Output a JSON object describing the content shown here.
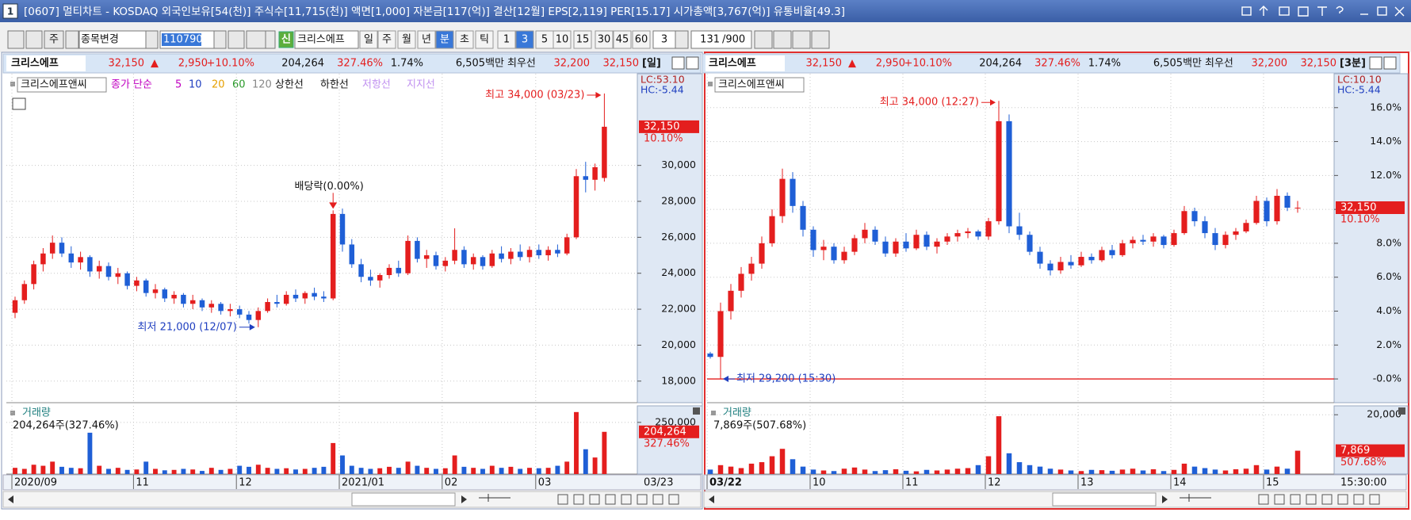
{
  "window": {
    "number": "1",
    "title": "[0607] 멀티차트 - KOSDAQ 외국인보유[54(천)] 주식수[11,715(천)] 액면[1,000] 자본금[117(억)] 결산[12월] EPS[2,119] PER[15.17] 시가총액[3,767(억)] 유통비율[49.3]"
  },
  "toolbar": {
    "period_select": "주",
    "stock_change": "종목변경",
    "code": "110790",
    "new_badge": "신",
    "stock_name": "크리스에프",
    "periods": [
      "일",
      "주",
      "월",
      "년",
      "분",
      "초",
      "틱"
    ],
    "minutes": [
      "1",
      "3",
      "5",
      "10",
      "15",
      "30",
      "45",
      "60"
    ],
    "interval": "3",
    "count": "131",
    "max_count": "/900"
  },
  "panels": [
    {
      "name": "크리스에프",
      "price": "32,150",
      "arrow": "▲",
      "change": "2,950",
      "change_rate": "+10.10%",
      "volume": "204,264",
      "volume_rate": "327.46%",
      "turnover": "1.74%",
      "amount": "6,505백만",
      "best_label": "최우선",
      "ask": "32,200",
      "bid": "32,150",
      "period": "[일]",
      "legend_name": "크리스에프앤씨",
      "indicator": "종가 단순",
      "ma_periods": [
        "5",
        "10",
        "20",
        "60",
        "120"
      ],
      "bands": [
        "상한선",
        "하한선"
      ],
      "lines": [
        "저항선",
        "지지선"
      ]
    },
    {
      "name": "크리스에프",
      "price": "32,150",
      "arrow": "▲",
      "change": "2,950",
      "change_rate": "+10.10%",
      "volume": "204,264",
      "volume_rate": "327.46%",
      "turnover": "1.74%",
      "amount": "6,505백만",
      "best_label": "최우선",
      "ask": "32,200",
      "bid": "32,150",
      "period": "[3분]",
      "legend_name": "크리스에프앤씨"
    }
  ],
  "chart_data": [
    {
      "type": "candlestick",
      "up_color": "#e41e1e",
      "down_color": "#1f5fd6",
      "grid": true,
      "ylim": [
        16800,
        35100
      ],
      "yticks": [
        {
          "value": 18000,
          "label": "18,000"
        },
        {
          "value": 20000,
          "label": "20,000"
        },
        {
          "value": 22000,
          "label": "22,000"
        },
        {
          "value": 24000,
          "label": "24,000"
        },
        {
          "value": 26000,
          "label": "26,000"
        },
        {
          "value": 28000,
          "label": "28,000"
        },
        {
          "value": 30000,
          "label": "30,000"
        }
      ],
      "open": [
        21800,
        22500,
        23400,
        24500,
        25100,
        25700,
        25100,
        24600,
        24900,
        24100,
        24400,
        23800,
        24000,
        23300,
        23600,
        22900,
        23100,
        22600,
        22800,
        22300,
        22500,
        22100,
        22300,
        21900,
        22000,
        21700,
        21400,
        21900,
        22400,
        22300,
        22800,
        22600,
        22900,
        22700,
        22600,
        27300,
        25600,
        24500,
        23800,
        23600,
        23900,
        24300,
        24000,
        25800,
        24800,
        25000,
        24400,
        24700,
        25300,
        24500,
        24900,
        24400,
        25100,
        24800,
        25200,
        24900,
        25300,
        25000,
        25300,
        25100,
        26000,
        29400,
        29200,
        29300
      ],
      "high": [
        22700,
        23600,
        24700,
        25400,
        26100,
        26000,
        25500,
        25200,
        25000,
        24700,
        24600,
        24300,
        24100,
        23800,
        23700,
        23400,
        23200,
        23000,
        22900,
        22800,
        22600,
        22500,
        22400,
        22300,
        22200,
        21900,
        22100,
        22600,
        22800,
        23000,
        23100,
        23000,
        23200,
        23000,
        27500,
        27600,
        25900,
        24800,
        24200,
        24000,
        24500,
        24700,
        26100,
        26000,
        25300,
        25200,
        24900,
        26500,
        25500,
        25100,
        25000,
        25300,
        25500,
        25400,
        25600,
        25500,
        25600,
        25500,
        25600,
        26200,
        29800,
        30200,
        30100,
        34000
      ],
      "low": [
        21500,
        22300,
        23100,
        24100,
        24800,
        24900,
        24300,
        24200,
        23800,
        23700,
        23600,
        23400,
        23100,
        23000,
        22700,
        22600,
        22400,
        22300,
        22100,
        22000,
        21900,
        21800,
        21700,
        21600,
        21500,
        21200,
        21000,
        21800,
        22100,
        22200,
        22400,
        22300,
        22500,
        22400,
        22500,
        25200,
        24300,
        23500,
        23300,
        23200,
        23700,
        23800,
        23900,
        24600,
        24300,
        24200,
        24100,
        24500,
        24300,
        24200,
        24200,
        24300,
        24600,
        24500,
        24700,
        24600,
        24800,
        24700,
        24900,
        25000,
        25900,
        28500,
        28600,
        29100
      ],
      "close": [
        22500,
        23400,
        24500,
        25100,
        25700,
        25100,
        24600,
        24900,
        24100,
        24400,
        23800,
        24000,
        23300,
        23600,
        22900,
        23100,
        22600,
        22800,
        22300,
        22500,
        22100,
        22300,
        21900,
        22000,
        21700,
        21400,
        21900,
        22400,
        22300,
        22800,
        22600,
        22900,
        22700,
        22600,
        27300,
        25600,
        24500,
        23800,
        23600,
        23900,
        24300,
        24000,
        25800,
        24800,
        25000,
        24400,
        24700,
        25300,
        24500,
        24900,
        24400,
        25100,
        24800,
        25200,
        24900,
        25300,
        25000,
        25300,
        25100,
        26000,
        29400,
        29200,
        29900,
        32150
      ],
      "high_label": "최고 34,000 (03/23)",
      "low_label": "최저 21,000 (12/07)",
      "event_label": "배당락(0.00%)",
      "lc_label": "LC:53.10",
      "hc_label": "HC:-5.44",
      "last_price_label": "32,150",
      "last_change_label": "10.10%"
    },
    {
      "type": "bar",
      "title": "거래량",
      "summary": "204,264주(327.46%)",
      "color_up": "#e41e1e",
      "color_down": "#1f5fd6",
      "grid": true,
      "categories": [
        "2020/09",
        null,
        null,
        null,
        null,
        null,
        null,
        null,
        null,
        null,
        null,
        null,
        null,
        "11",
        null,
        null,
        null,
        null,
        null,
        null,
        null,
        null,
        null,
        null,
        "12",
        null,
        null,
        null,
        null,
        null,
        null,
        null,
        null,
        null,
        null,
        "2021/01",
        null,
        null,
        null,
        null,
        null,
        null,
        null,
        null,
        null,
        null,
        "02",
        null,
        null,
        null,
        null,
        null,
        null,
        null,
        null,
        null,
        "03",
        null,
        null,
        null,
        null,
        null,
        null,
        null
      ],
      "values": [
        30000,
        25000,
        45000,
        40000,
        60000,
        35000,
        30000,
        28000,
        200000,
        40000,
        25000,
        30000,
        20000,
        22000,
        60000,
        25000,
        18000,
        20000,
        25000,
        22000,
        15000,
        30000,
        20000,
        25000,
        40000,
        35000,
        45000,
        30000,
        25000,
        28000,
        22000,
        25000,
        30000,
        35000,
        150000,
        90000,
        40000,
        30000,
        25000,
        28000,
        35000,
        30000,
        60000,
        40000,
        30000,
        25000,
        28000,
        90000,
        35000,
        30000,
        25000,
        40000,
        30000,
        35000,
        25000,
        30000,
        28000,
        30000,
        40000,
        60000,
        300000,
        120000,
        80000,
        204264
      ],
      "ylim": [
        0,
        330000
      ],
      "yticks": [
        {
          "value": 250000,
          "label": "250,000"
        }
      ],
      "last_value_label": "204,264",
      "last_rate_label": "327.46%",
      "current_date": "03/23"
    },
    {
      "type": "candlestick",
      "up_color": "#e41e1e",
      "down_color": "#1f5fd6",
      "grid": true,
      "ylim": [
        -1.4,
        18
      ],
      "yticks": [
        {
          "value": 0,
          "label": "-0.0%"
        },
        {
          "value": 2,
          "label": "2.0%"
        },
        {
          "value": 4,
          "label": "4.0%"
        },
        {
          "value": 6,
          "label": "6.0%"
        },
        {
          "value": 8,
          "label": "8.0%"
        },
        {
          "value": 10,
          "label": "10.0%"
        },
        {
          "value": 12,
          "label": "12.0%"
        },
        {
          "value": 14,
          "label": "14.0%"
        },
        {
          "value": 16,
          "label": "16.0%"
        }
      ],
      "reference_line": 0,
      "open": [
        1.5,
        1.3,
        4.0,
        5.2,
        6.2,
        6.8,
        8.0,
        9.6,
        11.8,
        10.2,
        8.8,
        7.6,
        7.8,
        7.0,
        7.5,
        8.3,
        8.8,
        8.1,
        7.4,
        8.1,
        7.7,
        8.5,
        7.8,
        8.1,
        8.4,
        8.6,
        8.7,
        8.4,
        9.3,
        15.2,
        9.0,
        8.5,
        7.5,
        6.8,
        6.4,
        6.9,
        6.7,
        7.2,
        7.0,
        7.6,
        7.3,
        8.0,
        8.2,
        8.1,
        8.4,
        7.9,
        8.6,
        9.9,
        9.3,
        8.6,
        7.9,
        8.5,
        8.7,
        9.2,
        10.5,
        9.3,
        10.8,
        10.1
      ],
      "high": [
        1.6,
        4.5,
        5.6,
        6.6,
        7.2,
        8.4,
        10.0,
        12.4,
        12.2,
        10.5,
        9.0,
        8.2,
        8.0,
        7.8,
        8.5,
        9.2,
        9.0,
        8.4,
        8.3,
        8.6,
        8.8,
        8.7,
        8.3,
        8.6,
        8.8,
        8.9,
        8.8,
        9.5,
        16.4,
        15.6,
        9.8,
        8.7,
        7.8,
        7.0,
        7.2,
        7.3,
        7.5,
        7.4,
        7.8,
        7.9,
        8.2,
        8.4,
        8.5,
        8.6,
        8.5,
        8.8,
        10.2,
        10.1,
        9.6,
        8.9,
        8.7,
        8.9,
        9.4,
        10.8,
        10.7,
        11.2,
        11.0,
        10.5
      ],
      "low": [
        1.2,
        0.0,
        3.5,
        4.8,
        5.8,
        6.5,
        7.8,
        9.2,
        9.8,
        8.4,
        7.2,
        7.0,
        6.8,
        6.8,
        7.3,
        8.0,
        7.9,
        7.2,
        7.2,
        7.5,
        7.6,
        7.6,
        7.4,
        7.9,
        8.1,
        8.3,
        8.2,
        8.2,
        9.1,
        8.6,
        8.2,
        7.3,
        6.5,
        6.1,
        6.2,
        6.5,
        6.6,
        6.8,
        6.9,
        7.1,
        7.2,
        7.7,
        7.9,
        7.8,
        7.7,
        7.8,
        8.5,
        9.0,
        8.3,
        7.6,
        7.7,
        8.2,
        8.6,
        9.1,
        9.0,
        9.1,
        9.9,
        9.8
      ],
      "close": [
        1.3,
        4.0,
        5.2,
        6.2,
        6.8,
        8.0,
        9.6,
        11.8,
        10.2,
        8.8,
        7.6,
        7.8,
        7.0,
        7.5,
        8.3,
        8.8,
        8.1,
        7.4,
        8.1,
        7.7,
        8.5,
        7.8,
        8.1,
        8.4,
        8.6,
        8.7,
        8.4,
        9.3,
        15.2,
        9.0,
        8.5,
        7.5,
        6.8,
        6.4,
        6.9,
        6.7,
        7.2,
        7.0,
        7.6,
        7.3,
        8.0,
        8.2,
        8.1,
        8.4,
        7.9,
        8.6,
        9.9,
        9.3,
        8.6,
        7.9,
        8.5,
        8.7,
        9.2,
        10.5,
        9.3,
        10.8,
        10.1,
        10.1
      ],
      "high_label": "최고 34,000 (12:27)",
      "low_label": "최저 29,200 (15:30)",
      "lc_label": "LC:10.10",
      "hc_label": "HC:-5.44",
      "last_price_label": "32,150",
      "last_change_label": "10.10%"
    },
    {
      "type": "bar",
      "title": "거래량",
      "summary": "7,869주(507.68%)",
      "color_up": "#e41e1e",
      "color_down": "#1f5fd6",
      "grid": true,
      "categories": [
        "03/22",
        null,
        null,
        null,
        null,
        null,
        null,
        null,
        null,
        null,
        "10",
        null,
        null,
        null,
        null,
        null,
        null,
        null,
        null,
        "11",
        null,
        null,
        null,
        null,
        null,
        null,
        null,
        "12",
        null,
        null,
        null,
        null,
        null,
        null,
        null,
        null,
        "13",
        null,
        null,
        null,
        null,
        null,
        null,
        null,
        null,
        "14",
        null,
        null,
        null,
        null,
        null,
        null,
        null,
        null,
        "15",
        null,
        null,
        null
      ],
      "values": [
        1500,
        3000,
        2500,
        2000,
        3500,
        4000,
        6000,
        8500,
        5000,
        2500,
        1500,
        1200,
        1000,
        1800,
        2200,
        1500,
        1000,
        1300,
        1600,
        1100,
        900,
        1400,
        1200,
        1500,
        1800,
        2000,
        3000,
        6000,
        19500,
        7000,
        4000,
        3000,
        2500,
        1800,
        1500,
        1200,
        1000,
        1400,
        1300,
        1100,
        1500,
        1800,
        1200,
        1600,
        1000,
        1400,
        3500,
        2500,
        2000,
        1500,
        1200,
        1600,
        1800,
        3000,
        1500,
        2500,
        1800,
        7869
      ],
      "ylim": [
        0,
        23000
      ],
      "yticks": [
        {
          "value": 20000,
          "label": "20,000"
        }
      ],
      "last_value_label": "7,869",
      "last_rate_label": "507.68%",
      "current_date": "15:30:00"
    }
  ]
}
